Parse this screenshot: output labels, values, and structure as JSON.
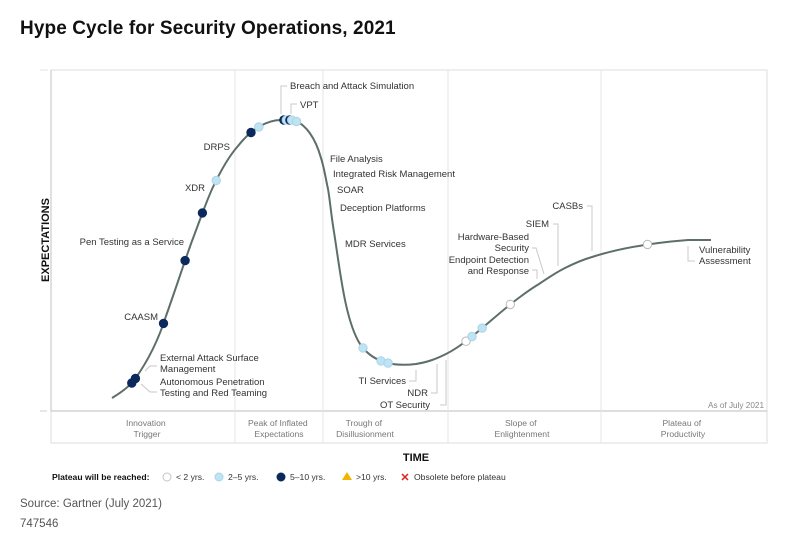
{
  "title": "Hype Cycle for Security Operations, 2021",
  "source": "Source: Gartner (July 2021)",
  "doc_id": "747546",
  "chart_data": {
    "type": "scatter",
    "title": "Hype Cycle for Security Operations, 2021",
    "xlabel": "TIME",
    "ylabel": "EXPECTATIONS",
    "as_of": "As of July 2021",
    "phases": [
      {
        "name": "Innovation Trigger",
        "lines": [
          "Innovation",
          "Trigger"
        ]
      },
      {
        "name": "Peak of Inflated Expectations",
        "lines": [
          "Peak of Inflated",
          "Expectations"
        ]
      },
      {
        "name": "Trough of Disillusionment",
        "lines": [
          "Trough of",
          "Disillusionment"
        ]
      },
      {
        "name": "Slope of Enlightenment",
        "lines": [
          "Slope of",
          "Enlightenment"
        ]
      },
      {
        "name": "Plateau of Productivity",
        "lines": [
          "Plateau of",
          "Productivity"
        ]
      }
    ],
    "legend": {
      "title": "Plateau will be reached:",
      "placement": "bottom",
      "items": [
        {
          "key": "lt2",
          "label": "< 2 yrs.",
          "symbol": "circle",
          "color": "#ffffff"
        },
        {
          "key": "2to5",
          "label": "2–5 yrs.",
          "symbol": "circle",
          "color": "#bfe3f2"
        },
        {
          "key": "5to10",
          "label": "5–10 yrs.",
          "symbol": "circle",
          "color": "#0b2a5b"
        },
        {
          "key": "gt10",
          "label": ">10 yrs.",
          "symbol": "triangle",
          "color": "#f2b400"
        },
        {
          "key": "obsolete",
          "label": "Obsolete before plateau",
          "symbol": "x",
          "color": "#e02020"
        }
      ]
    },
    "curve_color": "#5e6e6a",
    "technologies": [
      {
        "name": "Autonomous Penetration Testing and Red Teaming",
        "lines": [
          "Autonomous Penetration",
          "Testing and Red Teaming"
        ],
        "phase": "Innovation Trigger",
        "position": 0.033,
        "plateau": "5to10"
      },
      {
        "name": "External Attack Surface Management",
        "lines": [
          "External Attack Surface",
          "Management"
        ],
        "phase": "Innovation Trigger",
        "position": 0.039,
        "plateau": "5to10"
      },
      {
        "name": "CAASM",
        "lines": [
          "CAASM"
        ],
        "phase": "Innovation Trigger",
        "position": 0.086,
        "plateau": "5to10"
      },
      {
        "name": "Pen Testing as a Service",
        "lines": [
          "Pen Testing as a Service"
        ],
        "phase": "Innovation Trigger",
        "position": 0.122,
        "plateau": "5to10"
      },
      {
        "name": "XDR",
        "lines": [
          "XDR"
        ],
        "phase": "Innovation Trigger",
        "position": 0.151,
        "plateau": "5to10"
      },
      {
        "name": "DRPS",
        "lines": [
          "DRPS"
        ],
        "phase": "Peak of Inflated Expectations",
        "position": 0.174,
        "plateau": "2to5"
      },
      {
        "name": "Breach and Attack Simulation",
        "lines": [
          "Breach and Attack Simulation"
        ],
        "phase": "Peak of Inflated Expectations",
        "position": 0.232,
        "plateau": "5to10"
      },
      {
        "name": "VPT",
        "lines": [
          "VPT"
        ],
        "phase": "Peak of Inflated Expectations",
        "position": 0.245,
        "plateau": "2to5"
      },
      {
        "name": "File Analysis",
        "lines": [
          "File Analysis"
        ],
        "phase": "Peak of Inflated Expectations",
        "position": 0.287,
        "plateau": "5to10"
      },
      {
        "name": "Integrated Risk Management",
        "lines": [
          "Integrated Risk Management"
        ],
        "phase": "Trough of Disillusionment",
        "position": 0.291,
        "plateau": "2to5"
      },
      {
        "name": "SOAR",
        "lines": [
          "SOAR"
        ],
        "phase": "Trough of Disillusionment",
        "position": 0.297,
        "plateau": "5to10"
      },
      {
        "name": "Deception Platforms",
        "lines": [
          "Deception Platforms"
        ],
        "phase": "Trough of Disillusionment",
        "position": 0.3,
        "plateau": "2to5"
      },
      {
        "name": "MDR Services",
        "lines": [
          "MDR Services"
        ],
        "phase": "Trough of Disillusionment",
        "position": 0.308,
        "plateau": "2to5"
      },
      {
        "name": "TI Services",
        "lines": [
          "TI Services"
        ],
        "phase": "Trough of Disillusionment",
        "position": 0.419,
        "plateau": "2to5"
      },
      {
        "name": "NDR",
        "lines": [
          "NDR"
        ],
        "phase": "Trough of Disillusionment",
        "position": 0.449,
        "plateau": "2to5"
      },
      {
        "name": "OT Security",
        "lines": [
          "OT Security"
        ],
        "phase": "Slope of Enlightenment",
        "position": 0.461,
        "plateau": "2to5"
      },
      {
        "name": "Endpoint Detection and Response",
        "lines": [
          "Endpoint Detection",
          "and Response"
        ],
        "phase": "Slope of Enlightenment",
        "position": 0.591,
        "plateau": "lt2"
      },
      {
        "name": "Hardware-Based Security",
        "lines": [
          "Hardware-Based",
          "Security"
        ],
        "phase": "Slope of Enlightenment",
        "position": 0.601,
        "plateau": "2to5"
      },
      {
        "name": "SIEM",
        "lines": [
          "SIEM"
        ],
        "phase": "Slope of Enlightenment",
        "position": 0.618,
        "plateau": "2to5"
      },
      {
        "name": "CASBs",
        "lines": [
          "CASBs"
        ],
        "phase": "Slope of Enlightenment",
        "position": 0.665,
        "plateau": "lt2"
      },
      {
        "name": "Vulnerability Assessment",
        "lines": [
          "Vulnerability",
          "Assessment"
        ],
        "phase": "Plateau of Productivity",
        "position": 0.894,
        "plateau": "lt2"
      }
    ]
  }
}
